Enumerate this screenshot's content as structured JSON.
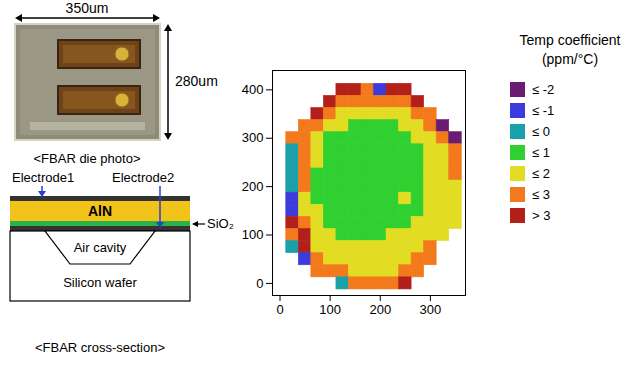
{
  "die_photo": {
    "width_label": "350um",
    "height_label": "280um",
    "caption": "<FBAR die photo>"
  },
  "cross_section": {
    "electrode1": "Electrode1",
    "electrode2": "Electrode2",
    "piezo": "AlN",
    "oxide": "SiO₂",
    "cavity": "Air cavity",
    "substrate": "Silicon wafer",
    "caption": "<FBAR cross-section>"
  },
  "chart_data": {
    "type": "heatmap",
    "x": [
      25,
      50,
      75,
      100,
      125,
      150,
      175,
      200,
      225,
      250,
      275,
      300,
      325,
      350
    ],
    "y": [
      400,
      375,
      350,
      325,
      300,
      275,
      250,
      225,
      200,
      175,
      150,
      125,
      100,
      75,
      50,
      25,
      0
    ],
    "values": [
      [
        null,
        null,
        null,
        null,
        3.5,
        3.5,
        2.5,
        -1.5,
        3.5,
        3.5,
        null,
        null,
        null,
        null
      ],
      [
        null,
        null,
        null,
        3.5,
        2.5,
        2.5,
        2.5,
        2.5,
        2.5,
        2.5,
        3.5,
        null,
        null,
        null
      ],
      [
        null,
        null,
        3.5,
        2.5,
        1.5,
        1.5,
        1.5,
        1.5,
        1.5,
        1.5,
        2.5,
        2.5,
        null,
        null
      ],
      [
        null,
        2.5,
        2.5,
        1.5,
        1.5,
        0.5,
        0.5,
        0.5,
        0.5,
        1.5,
        1.5,
        2.5,
        -2.5,
        null
      ],
      [
        2.5,
        2.5,
        1.5,
        0.5,
        0.5,
        0.5,
        0.5,
        0.5,
        0.5,
        0.5,
        1.5,
        1.5,
        2.5,
        -2.5
      ],
      [
        -0.5,
        2.5,
        1.5,
        0.5,
        0.5,
        0.5,
        0.5,
        0.5,
        0.5,
        0.5,
        0.5,
        1.5,
        1.5,
        2.5
      ],
      [
        -0.5,
        2.5,
        1.5,
        0.5,
        0.5,
        0.5,
        0.5,
        0.5,
        0.5,
        0.5,
        0.5,
        1.5,
        1.5,
        2.5
      ],
      [
        -0.5,
        2.5,
        0.5,
        0.5,
        0.5,
        0.5,
        0.5,
        0.5,
        0.5,
        0.5,
        0.5,
        1.5,
        1.5,
        2.5
      ],
      [
        -0.5,
        2.5,
        0.5,
        0.5,
        0.5,
        0.5,
        0.5,
        0.5,
        0.5,
        0.5,
        0.5,
        1.5,
        1.5,
        1.5
      ],
      [
        -1.5,
        1.5,
        0.5,
        0.5,
        0.5,
        0.5,
        0.5,
        0.5,
        0.5,
        1.5,
        0.5,
        1.5,
        1.5,
        1.5
      ],
      [
        -1.5,
        1.5,
        1.5,
        0.5,
        0.5,
        0.5,
        0.5,
        0.5,
        0.5,
        0.5,
        0.5,
        1.5,
        1.5,
        1.5
      ],
      [
        3.5,
        2.5,
        1.5,
        0.5,
        0.5,
        0.5,
        0.5,
        0.5,
        0.5,
        0.5,
        1.5,
        1.5,
        1.5,
        1.5
      ],
      [
        2.5,
        3.5,
        1.5,
        1.5,
        0.5,
        0.5,
        0.5,
        0.5,
        1.5,
        1.5,
        1.5,
        1.5,
        1.5,
        null
      ],
      [
        -0.5,
        3.5,
        1.5,
        1.5,
        1.5,
        1.5,
        1.5,
        1.5,
        1.5,
        1.5,
        1.5,
        2.5,
        null,
        null
      ],
      [
        null,
        -1.5,
        2.5,
        1.5,
        1.5,
        1.5,
        1.5,
        1.5,
        1.5,
        1.5,
        2.5,
        2.5,
        null,
        null
      ],
      [
        null,
        null,
        2.5,
        2.5,
        2.5,
        1.5,
        1.5,
        1.5,
        1.5,
        2.5,
        2.5,
        null,
        null,
        null
      ],
      [
        null,
        null,
        null,
        null,
        -0.5,
        2.5,
        2.5,
        2.5,
        2.5,
        3.5,
        null,
        null,
        null,
        null
      ]
    ],
    "xlim": [
      -15,
      370
    ],
    "ylim": [
      -25,
      440
    ],
    "xticks": [
      0,
      100,
      200,
      300
    ],
    "yticks": [
      0,
      100,
      200,
      300,
      400
    ],
    "color_bar": {
      "title": [
        "Temp coefficient",
        "(ppm/°C)"
      ],
      "thresholds": [
        -2,
        -1,
        0,
        1,
        2,
        3
      ],
      "labels": [
        "≤ -2",
        "≤ -1",
        "≤ 0",
        "≤ 1",
        "≤ 2",
        "≤ 3",
        "> 3"
      ],
      "colors": [
        "#6a1b72",
        "#3c3cdc",
        "#1aa0a8",
        "#2fd02f",
        "#e2dc22",
        "#f27a1c",
        "#b3201a"
      ]
    }
  }
}
